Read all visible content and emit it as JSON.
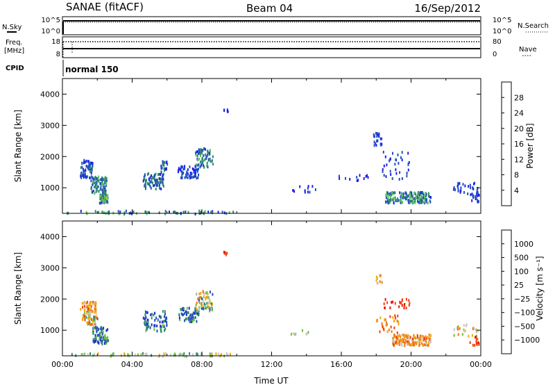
{
  "header": {
    "station": "SANAE (fitACF)",
    "beam": "Beam 04",
    "date": "16/Sep/2012"
  },
  "nsky_panel": {
    "left_label": "N.Sky",
    "right_label": "N.Search",
    "left_ticks": [
      "10^5",
      "10^0"
    ],
    "right_ticks": [
      "10^5",
      "10^0"
    ]
  },
  "freq_panel": {
    "left_label_1": "Freq.",
    "left_label_2": "[MHz]",
    "right_label": "Nave",
    "left_ticks": [
      "18",
      "8"
    ],
    "right_ticks": [
      "80",
      "0"
    ]
  },
  "cpid_panel": {
    "label": "CPID",
    "value": "normal 150"
  },
  "colors": {
    "power_scale": [
      "#1c1cf0",
      "#1f4fc0",
      "#2f8a6a",
      "#5fc05f",
      "#e8d020",
      "#f0a010",
      "#f07010",
      "#e02010"
    ],
    "velocity_scale": [
      "#e81010",
      "#f04010",
      "#f07a10",
      "#f0a810",
      "#c8c8c8",
      "#6cc040",
      "#2f8a6a",
      "#1f4fc0",
      "#1c2ac0"
    ]
  },
  "chart_data": [
    {
      "type": "heatmap",
      "name": "power",
      "ylabel": "Slant Range [km]",
      "ylim": [
        180,
        4500
      ],
      "yticks": [
        "1000",
        "2000",
        "3000",
        "4000"
      ],
      "xlim": [
        0,
        24
      ],
      "colorbar": {
        "label": "Power [dB]",
        "ticks": [
          "4",
          "8",
          "12",
          "16",
          "20",
          "24",
          "28"
        ]
      },
      "clusters": [
        {
          "x0": 0.2,
          "x1": 9.8,
          "y0": 200,
          "y1": 300,
          "count": 70,
          "value_range": [
            2,
            16
          ],
          "color_mode": "power"
        },
        {
          "x0": 1.0,
          "x1": 1.7,
          "y0": 1350,
          "y1": 1950,
          "count": 70,
          "value_range": [
            2,
            9
          ],
          "color_mode": "power"
        },
        {
          "x0": 1.6,
          "x1": 2.5,
          "y0": 850,
          "y1": 1400,
          "count": 90,
          "value_range": [
            3,
            14
          ],
          "color_mode": "power"
        },
        {
          "x0": 2.1,
          "x1": 2.6,
          "y0": 550,
          "y1": 850,
          "count": 50,
          "value_range": [
            5,
            17
          ],
          "color_mode": "power"
        },
        {
          "x0": 4.6,
          "x1": 5.8,
          "y0": 1000,
          "y1": 1500,
          "count": 80,
          "value_range": [
            3,
            12
          ],
          "color_mode": "power"
        },
        {
          "x0": 5.6,
          "x1": 6.0,
          "y0": 1500,
          "y1": 1900,
          "count": 25,
          "value_range": [
            3,
            10
          ],
          "color_mode": "power"
        },
        {
          "x0": 6.6,
          "x1": 7.8,
          "y0": 1350,
          "y1": 1750,
          "count": 60,
          "value_range": [
            2,
            8
          ],
          "color_mode": "power"
        },
        {
          "x0": 7.6,
          "x1": 8.6,
          "y0": 1700,
          "y1": 2300,
          "count": 70,
          "value_range": [
            3,
            14
          ],
          "color_mode": "power"
        },
        {
          "x0": 9.2,
          "x1": 9.5,
          "y0": 3450,
          "y1": 3550,
          "count": 5,
          "value_range": [
            3,
            6
          ],
          "color_mode": "power"
        },
        {
          "x0": 13.0,
          "x1": 14.5,
          "y0": 900,
          "y1": 1100,
          "count": 12,
          "value_range": [
            2,
            5
          ],
          "color_mode": "power"
        },
        {
          "x0": 15.6,
          "x1": 17.5,
          "y0": 1250,
          "y1": 1450,
          "count": 12,
          "value_range": [
            2,
            5
          ],
          "color_mode": "power"
        },
        {
          "x0": 17.8,
          "x1": 18.3,
          "y0": 2400,
          "y1": 2800,
          "count": 22,
          "value_range": [
            2,
            8
          ],
          "color_mode": "power"
        },
        {
          "x0": 18.3,
          "x1": 19.9,
          "y0": 1300,
          "y1": 2200,
          "count": 35,
          "value_range": [
            2,
            7
          ],
          "color_mode": "power"
        },
        {
          "x0": 18.5,
          "x1": 21.1,
          "y0": 550,
          "y1": 900,
          "count": 180,
          "value_range": [
            3,
            16
          ],
          "color_mode": "power"
        },
        {
          "x0": 22.3,
          "x1": 23.8,
          "y0": 850,
          "y1": 1200,
          "count": 30,
          "value_range": [
            2,
            6
          ],
          "color_mode": "power"
        },
        {
          "x0": 23.3,
          "x1": 23.9,
          "y0": 550,
          "y1": 850,
          "count": 18,
          "value_range": [
            2,
            6
          ],
          "color_mode": "power"
        }
      ]
    },
    {
      "type": "heatmap",
      "name": "velocity",
      "ylabel": "Slant Range [km]",
      "xlabel": "Time UT",
      "ylim": [
        180,
        4500
      ],
      "yticks": [
        "1000",
        "2000",
        "3000",
        "4000"
      ],
      "xlim": [
        0,
        24
      ],
      "xticks": [
        "00:00",
        "04:00",
        "08:00",
        "12:00",
        "16:00",
        "20:00",
        "00:00"
      ],
      "colorbar": {
        "label": "Velocity [m s⁻¹]",
        "ticks": [
          "1000",
          "500",
          "100",
          "25",
          "−25",
          "−100",
          "−500",
          "−1000"
        ]
      },
      "clusters": [
        {
          "x0": 0.2,
          "x1": 9.8,
          "y0": 200,
          "y1": 300,
          "count": 70,
          "value_range": [
            3,
            6
          ],
          "color_mode": "velocity"
        },
        {
          "x0": 1.0,
          "x1": 1.9,
          "y0": 1650,
          "y1": 1950,
          "count": 45,
          "value_range": [
            1,
            4
          ],
          "color_mode": "velocity"
        },
        {
          "x0": 1.1,
          "x1": 2.0,
          "y0": 1200,
          "y1": 1650,
          "count": 55,
          "value_range": [
            1,
            6
          ],
          "color_mode": "velocity"
        },
        {
          "x0": 1.7,
          "x1": 2.6,
          "y0": 600,
          "y1": 1150,
          "count": 80,
          "value_range": [
            5,
            8
          ],
          "color_mode": "velocity"
        },
        {
          "x0": 4.6,
          "x1": 6.0,
          "y0": 1000,
          "y1": 1650,
          "count": 70,
          "value_range": [
            5,
            8
          ],
          "color_mode": "velocity"
        },
        {
          "x0": 6.6,
          "x1": 7.8,
          "y0": 1300,
          "y1": 1750,
          "count": 60,
          "value_range": [
            5,
            8
          ],
          "color_mode": "velocity"
        },
        {
          "x0": 7.6,
          "x1": 8.6,
          "y0": 1650,
          "y1": 2300,
          "count": 70,
          "value_range": [
            2,
            7
          ],
          "color_mode": "velocity"
        },
        {
          "x0": 9.2,
          "x1": 9.5,
          "y0": 3450,
          "y1": 3550,
          "count": 5,
          "value_range": [
            0,
            1
          ],
          "color_mode": "velocity"
        },
        {
          "x0": 13.0,
          "x1": 14.5,
          "y0": 900,
          "y1": 1050,
          "count": 8,
          "value_range": [
            4,
            5
          ],
          "color_mode": "velocity"
        },
        {
          "x0": 17.9,
          "x1": 18.3,
          "y0": 2550,
          "y1": 2800,
          "count": 10,
          "value_range": [
            2,
            4
          ],
          "color_mode": "velocity"
        },
        {
          "x0": 18.4,
          "x1": 19.9,
          "y0": 1750,
          "y1": 2050,
          "count": 25,
          "value_range": [
            0,
            1
          ],
          "color_mode": "velocity"
        },
        {
          "x0": 18.0,
          "x1": 19.3,
          "y0": 950,
          "y1": 1550,
          "count": 30,
          "value_range": [
            1,
            3
          ],
          "color_mode": "velocity"
        },
        {
          "x0": 18.9,
          "x1": 21.1,
          "y0": 550,
          "y1": 900,
          "count": 150,
          "value_range": [
            1,
            4
          ],
          "color_mode": "velocity"
        },
        {
          "x0": 22.3,
          "x1": 23.8,
          "y0": 850,
          "y1": 1250,
          "count": 25,
          "value_range": [
            2,
            5
          ],
          "color_mode": "velocity"
        },
        {
          "x0": 23.3,
          "x1": 23.9,
          "y0": 550,
          "y1": 850,
          "count": 15,
          "value_range": [
            0,
            2
          ],
          "color_mode": "velocity"
        }
      ]
    }
  ]
}
